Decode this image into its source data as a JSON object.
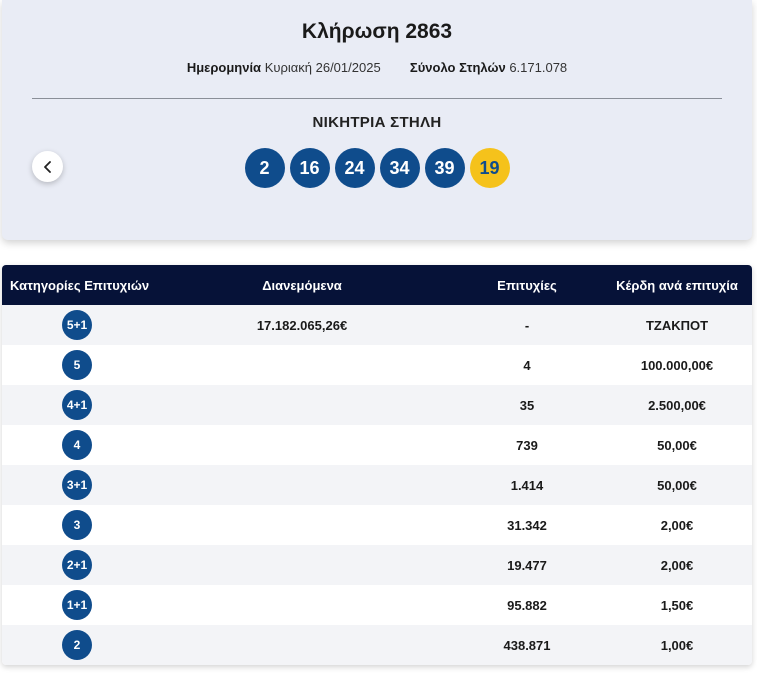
{
  "draw": {
    "title": "Κλήρωση 2863",
    "date_label": "Ημερομηνία",
    "date_value": "Κυριακή 26/01/2025",
    "columns_label": "Σύνολο Στηλών",
    "columns_value": "6.171.078",
    "winning_label": "ΝΙΚΗΤΡΙΑ ΣΤΗΛΗ",
    "numbers": [
      "2",
      "16",
      "24",
      "34",
      "39"
    ],
    "joker": "19",
    "colors": {
      "ball": "#0f4c8c",
      "joker": "#f5c21b",
      "header": "#061238"
    }
  },
  "table": {
    "headers": {
      "category": "Κατηγορίες Επιτυχιών",
      "pool": "Διανεμόμενα",
      "winners": "Επιτυχίες",
      "prize": "Κέρδη ανά επιτυχία"
    },
    "rows": [
      {
        "category": "5+1",
        "pool": "17.182.065,26€",
        "winners": "-",
        "prize": "ΤΖΑΚΠΟΤ"
      },
      {
        "category": "5",
        "pool": "",
        "winners": "4",
        "prize": "100.000,00€"
      },
      {
        "category": "4+1",
        "pool": "",
        "winners": "35",
        "prize": "2.500,00€"
      },
      {
        "category": "4",
        "pool": "",
        "winners": "739",
        "prize": "50,00€"
      },
      {
        "category": "3+1",
        "pool": "",
        "winners": "1.414",
        "prize": "50,00€"
      },
      {
        "category": "3",
        "pool": "",
        "winners": "31.342",
        "prize": "2,00€"
      },
      {
        "category": "2+1",
        "pool": "",
        "winners": "19.477",
        "prize": "2,00€"
      },
      {
        "category": "1+1",
        "pool": "",
        "winners": "95.882",
        "prize": "1,50€"
      },
      {
        "category": "2",
        "pool": "",
        "winners": "438.871",
        "prize": "1,00€"
      }
    ]
  },
  "icons": {
    "prev": "chevron-left-icon"
  }
}
